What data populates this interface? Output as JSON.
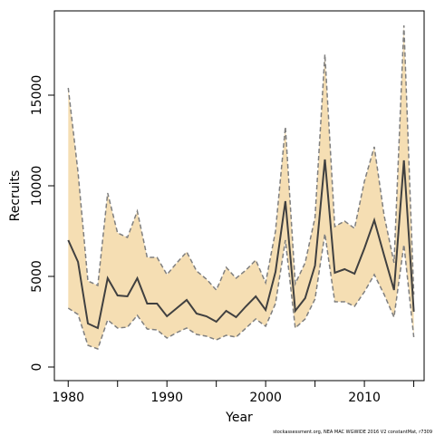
{
  "chart_data": {
    "type": "line",
    "x_label": "Year",
    "y_label": "Recruits",
    "footnote": "stockassessment.org, NEA MAC WGWIDE 2016 V2 constantMat, r7309",
    "x": [
      1980,
      1981,
      1982,
      1983,
      1984,
      1985,
      1986,
      1987,
      1988,
      1989,
      1990,
      1991,
      1992,
      1993,
      1994,
      1995,
      1996,
      1997,
      1998,
      1999,
      2000,
      2001,
      2002,
      2003,
      2004,
      2005,
      2006,
      2007,
      2008,
      2009,
      2010,
      2011,
      2012,
      2013,
      2014,
      2015
    ],
    "values": [
      7000,
      5800,
      2400,
      2150,
      4900,
      3950,
      3900,
      4900,
      3500,
      3500,
      2800,
      3250,
      3700,
      2950,
      2800,
      2500,
      3100,
      2750,
      3350,
      3900,
      3150,
      5250,
      9150,
      3100,
      3800,
      5600,
      11450,
      5200,
      5400,
      5150,
      6550,
      8100,
      6150,
      4250,
      11400,
      3050
    ],
    "upper": [
      15400,
      10750,
      4750,
      4500,
      9600,
      7400,
      7150,
      8600,
      6050,
      6050,
      5100,
      5750,
      6350,
      5300,
      4850,
      4250,
      5500,
      4900,
      5350,
      5900,
      4650,
      7500,
      13250,
      4600,
      5750,
      8250,
      17250,
      7750,
      8050,
      7650,
      10250,
      12150,
      8350,
      5750,
      18850,
      4000
    ],
    "lower": [
      3250,
      2900,
      1200,
      1000,
      2600,
      2150,
      2200,
      2850,
      2100,
      2050,
      1600,
      1900,
      2150,
      1800,
      1700,
      1500,
      1750,
      1650,
      2150,
      2650,
      2250,
      3500,
      7000,
      2150,
      2650,
      3750,
      7350,
      3600,
      3600,
      3350,
      4150,
      5100,
      4000,
      2750,
      6750,
      1650
    ],
    "color": "#404040",
    "band_color": "#f5deb3",
    "band_edge_color": "#7f7f7f",
    "xlim": [
      1978.6,
      2016.05
    ],
    "ylim": [
      -750,
      19650
    ],
    "xticks": [
      1980,
      1990,
      2000,
      2010
    ],
    "xminor_ticks": [
      1985,
      1995,
      2005,
      2015
    ],
    "yticks": [
      0,
      5000,
      10000,
      15000
    ]
  }
}
